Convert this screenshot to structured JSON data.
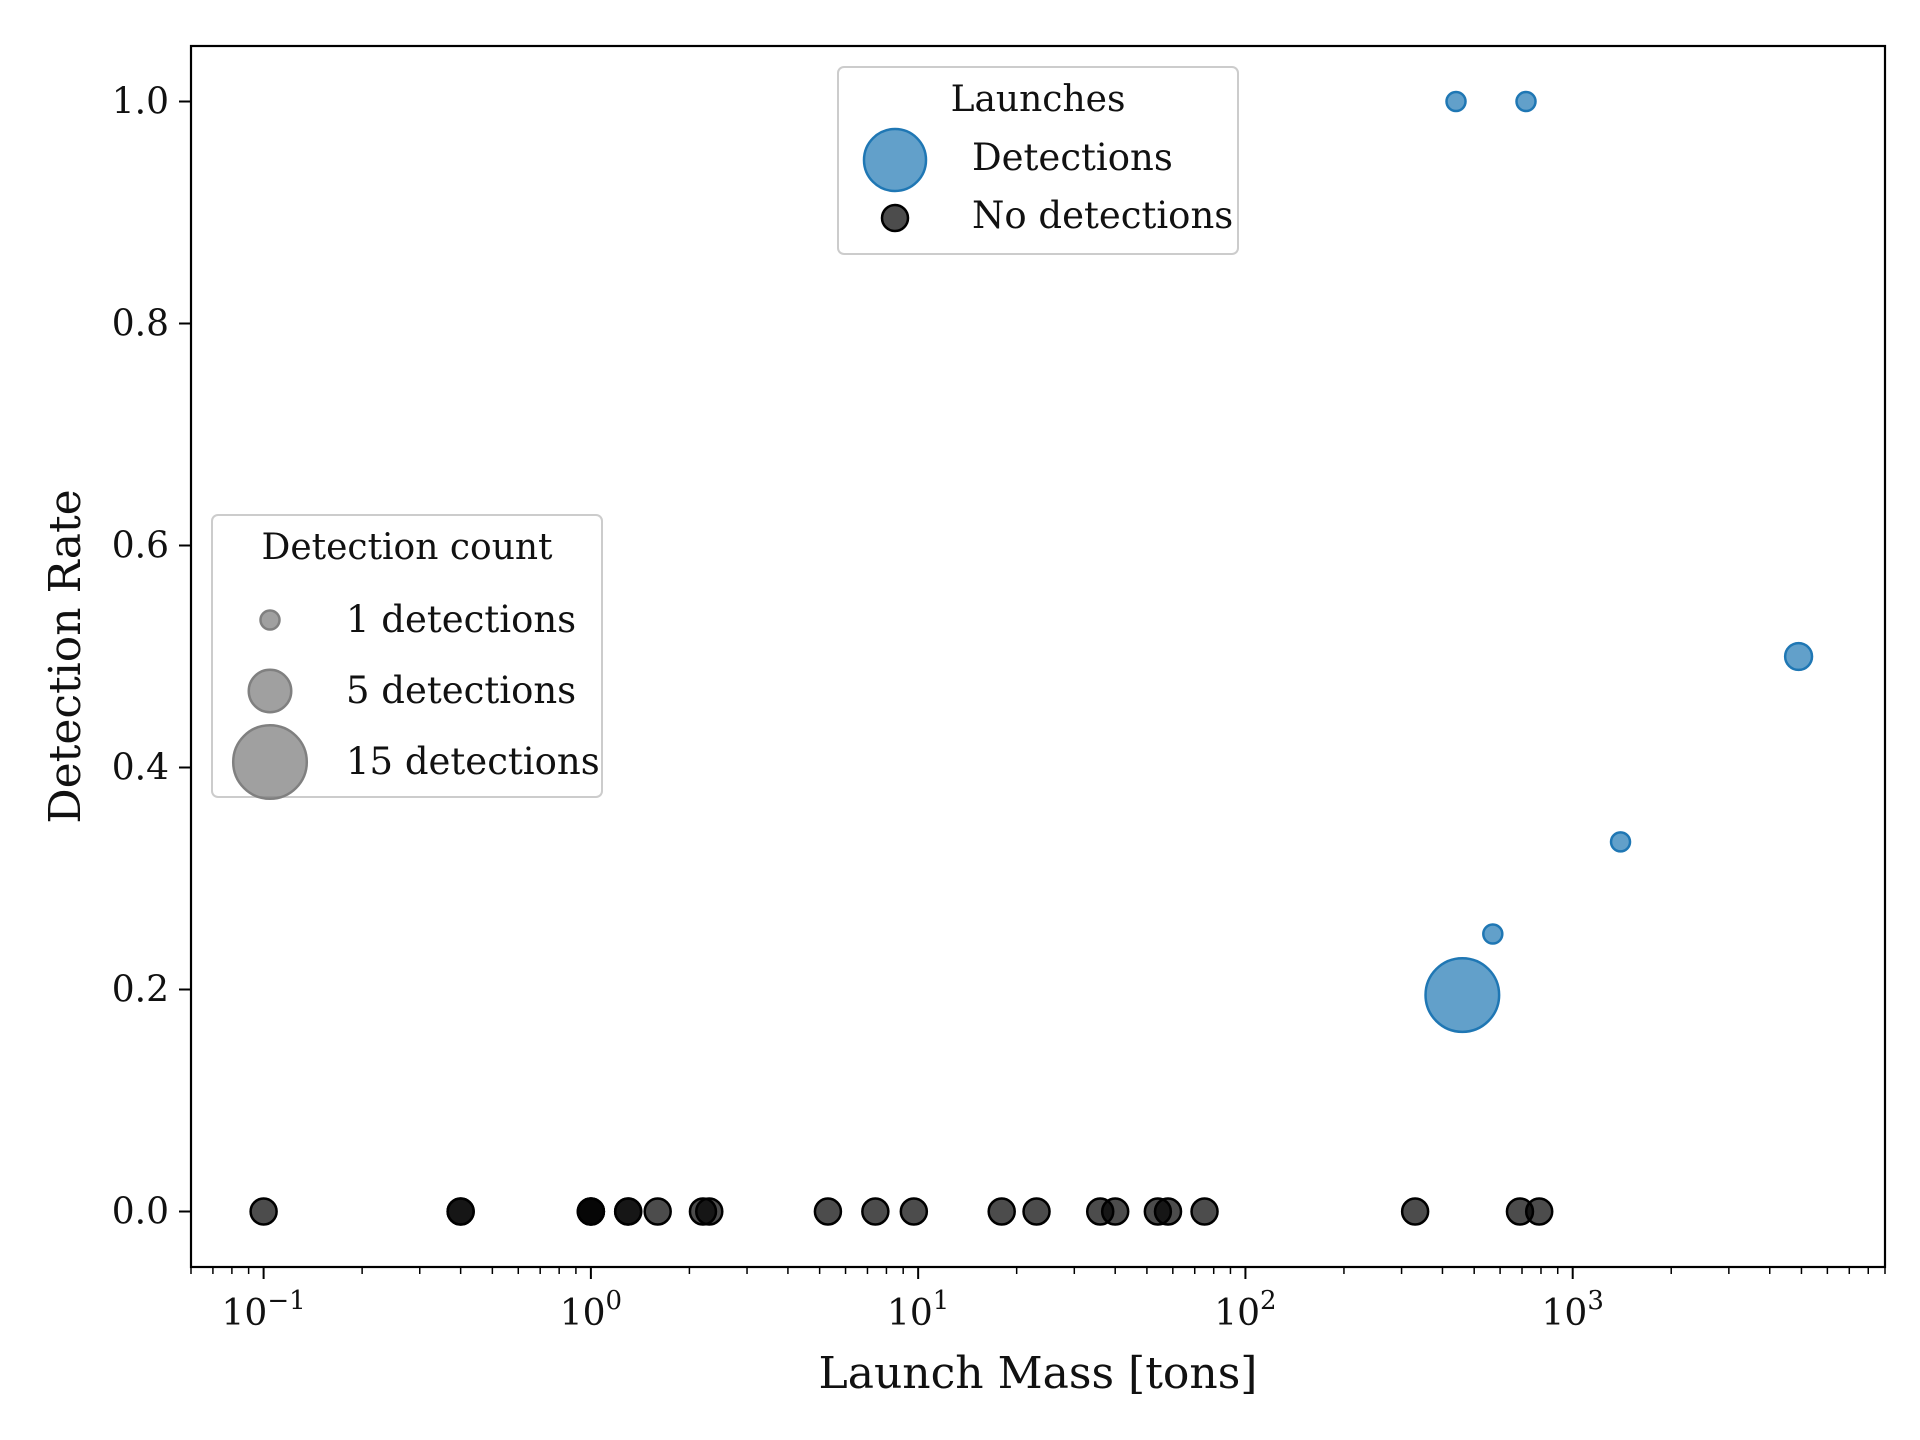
{
  "chart_data": {
    "type": "scatter",
    "title": "",
    "xlabel": "Launch Mass [tons]",
    "ylabel": "Detection Rate",
    "xscale": "log",
    "xlim": [
      0.06,
      9000
    ],
    "ylim": [
      -0.05,
      1.05
    ],
    "grid": false,
    "x_ticks": [
      {
        "value": 0.1,
        "base": "10",
        "exp": "−1"
      },
      {
        "value": 1,
        "base": "10",
        "exp": "0"
      },
      {
        "value": 10,
        "base": "10",
        "exp": "1"
      },
      {
        "value": 100,
        "base": "10",
        "exp": "2"
      },
      {
        "value": 1000,
        "base": "10",
        "exp": "3"
      }
    ],
    "y_ticks": [
      {
        "value": 0.0,
        "label": "0.0"
      },
      {
        "value": 0.2,
        "label": "0.2"
      },
      {
        "value": 0.4,
        "label": "0.4"
      },
      {
        "value": 0.6,
        "label": "0.6"
      },
      {
        "value": 0.8,
        "label": "0.8"
      },
      {
        "value": 1.0,
        "label": "1.0"
      }
    ],
    "series": [
      {
        "name": "Detections",
        "color": "#1f77b4",
        "opacity": 0.7,
        "points": [
          {
            "x": 440,
            "y": 1.0,
            "count": 1
          },
          {
            "x": 720,
            "y": 1.0,
            "count": 1
          },
          {
            "x": 4900,
            "y": 0.5,
            "count": 2
          },
          {
            "x": 1400,
            "y": 0.333,
            "count": 1
          },
          {
            "x": 570,
            "y": 0.25,
            "count": 1
          },
          {
            "x": 460,
            "y": 0.195,
            "count": 15
          }
        ]
      },
      {
        "name": "No detections",
        "color": "#000000",
        "opacity": 0.7,
        "points": [
          {
            "x": 0.1,
            "y": 0.0
          },
          {
            "x": 0.4,
            "y": 0.0
          },
          {
            "x": 0.4,
            "y": 0.0
          },
          {
            "x": 1.0,
            "y": 0.0
          },
          {
            "x": 1.0,
            "y": 0.0
          },
          {
            "x": 1.0,
            "y": 0.0
          },
          {
            "x": 1.3,
            "y": 0.0
          },
          {
            "x": 1.3,
            "y": 0.0
          },
          {
            "x": 1.6,
            "y": 0.0
          },
          {
            "x": 2.2,
            "y": 0.0
          },
          {
            "x": 2.3,
            "y": 0.0
          },
          {
            "x": 5.3,
            "y": 0.0
          },
          {
            "x": 7.4,
            "y": 0.0
          },
          {
            "x": 9.7,
            "y": 0.0
          },
          {
            "x": 18,
            "y": 0.0
          },
          {
            "x": 23,
            "y": 0.0
          },
          {
            "x": 36,
            "y": 0.0
          },
          {
            "x": 40,
            "y": 0.0
          },
          {
            "x": 54,
            "y": 0.0
          },
          {
            "x": 58,
            "y": 0.0
          },
          {
            "x": 75,
            "y": 0.0
          },
          {
            "x": 330,
            "y": 0.0
          },
          {
            "x": 690,
            "y": 0.0
          },
          {
            "x": 790,
            "y": 0.0
          }
        ]
      }
    ],
    "legends": [
      {
        "title": "Launches",
        "placement": "upper-center",
        "entries": [
          {
            "label": "Detections",
            "color": "#1f77b4"
          },
          {
            "label": "No detections",
            "color": "#000000"
          }
        ]
      },
      {
        "title": "Detection count",
        "placement": "center-left",
        "entries": [
          {
            "label": "1 detections",
            "count": 1,
            "color": "#808080"
          },
          {
            "label": "5 detections",
            "count": 5,
            "color": "#808080"
          },
          {
            "label": "15 detections",
            "count": 15,
            "color": "#808080"
          }
        ]
      }
    ]
  }
}
